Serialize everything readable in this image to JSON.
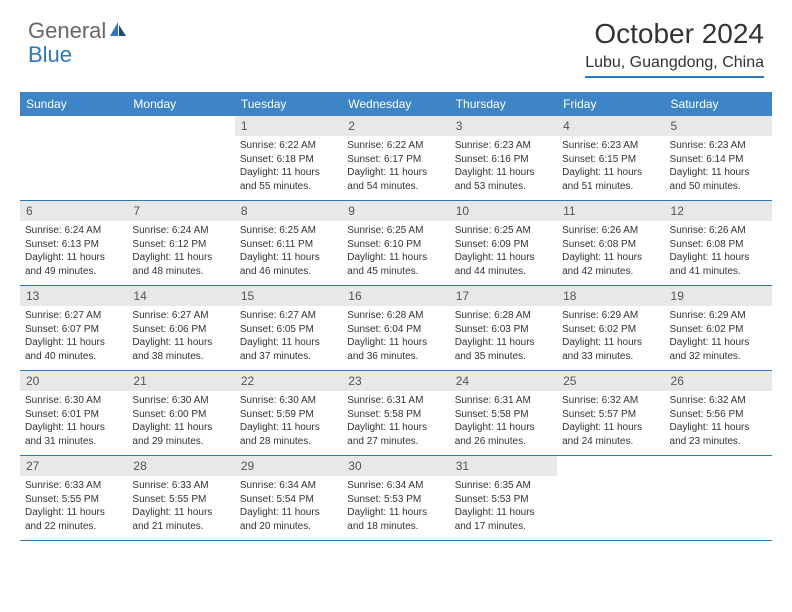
{
  "logo": {
    "text1": "General",
    "text2": "Blue"
  },
  "title": "October 2024",
  "location": "Lubu, Guangdong, China",
  "colors": {
    "header_bg": "#3d85c6",
    "border": "#2f76b8",
    "daynum_bg": "#e8e8e8",
    "text": "#333333"
  },
  "day_names": [
    "Sunday",
    "Monday",
    "Tuesday",
    "Wednesday",
    "Thursday",
    "Friday",
    "Saturday"
  ],
  "weeks": [
    [
      {
        "n": "",
        "lines": []
      },
      {
        "n": "",
        "lines": []
      },
      {
        "n": "1",
        "lines": [
          "Sunrise: 6:22 AM",
          "Sunset: 6:18 PM",
          "Daylight: 11 hours and 55 minutes."
        ]
      },
      {
        "n": "2",
        "lines": [
          "Sunrise: 6:22 AM",
          "Sunset: 6:17 PM",
          "Daylight: 11 hours and 54 minutes."
        ]
      },
      {
        "n": "3",
        "lines": [
          "Sunrise: 6:23 AM",
          "Sunset: 6:16 PM",
          "Daylight: 11 hours and 53 minutes."
        ]
      },
      {
        "n": "4",
        "lines": [
          "Sunrise: 6:23 AM",
          "Sunset: 6:15 PM",
          "Daylight: 11 hours and 51 minutes."
        ]
      },
      {
        "n": "5",
        "lines": [
          "Sunrise: 6:23 AM",
          "Sunset: 6:14 PM",
          "Daylight: 11 hours and 50 minutes."
        ]
      }
    ],
    [
      {
        "n": "6",
        "lines": [
          "Sunrise: 6:24 AM",
          "Sunset: 6:13 PM",
          "Daylight: 11 hours and 49 minutes."
        ]
      },
      {
        "n": "7",
        "lines": [
          "Sunrise: 6:24 AM",
          "Sunset: 6:12 PM",
          "Daylight: 11 hours and 48 minutes."
        ]
      },
      {
        "n": "8",
        "lines": [
          "Sunrise: 6:25 AM",
          "Sunset: 6:11 PM",
          "Daylight: 11 hours and 46 minutes."
        ]
      },
      {
        "n": "9",
        "lines": [
          "Sunrise: 6:25 AM",
          "Sunset: 6:10 PM",
          "Daylight: 11 hours and 45 minutes."
        ]
      },
      {
        "n": "10",
        "lines": [
          "Sunrise: 6:25 AM",
          "Sunset: 6:09 PM",
          "Daylight: 11 hours and 44 minutes."
        ]
      },
      {
        "n": "11",
        "lines": [
          "Sunrise: 6:26 AM",
          "Sunset: 6:08 PM",
          "Daylight: 11 hours and 42 minutes."
        ]
      },
      {
        "n": "12",
        "lines": [
          "Sunrise: 6:26 AM",
          "Sunset: 6:08 PM",
          "Daylight: 11 hours and 41 minutes."
        ]
      }
    ],
    [
      {
        "n": "13",
        "lines": [
          "Sunrise: 6:27 AM",
          "Sunset: 6:07 PM",
          "Daylight: 11 hours and 40 minutes."
        ]
      },
      {
        "n": "14",
        "lines": [
          "Sunrise: 6:27 AM",
          "Sunset: 6:06 PM",
          "Daylight: 11 hours and 38 minutes."
        ]
      },
      {
        "n": "15",
        "lines": [
          "Sunrise: 6:27 AM",
          "Sunset: 6:05 PM",
          "Daylight: 11 hours and 37 minutes."
        ]
      },
      {
        "n": "16",
        "lines": [
          "Sunrise: 6:28 AM",
          "Sunset: 6:04 PM",
          "Daylight: 11 hours and 36 minutes."
        ]
      },
      {
        "n": "17",
        "lines": [
          "Sunrise: 6:28 AM",
          "Sunset: 6:03 PM",
          "Daylight: 11 hours and 35 minutes."
        ]
      },
      {
        "n": "18",
        "lines": [
          "Sunrise: 6:29 AM",
          "Sunset: 6:02 PM",
          "Daylight: 11 hours and 33 minutes."
        ]
      },
      {
        "n": "19",
        "lines": [
          "Sunrise: 6:29 AM",
          "Sunset: 6:02 PM",
          "Daylight: 11 hours and 32 minutes."
        ]
      }
    ],
    [
      {
        "n": "20",
        "lines": [
          "Sunrise: 6:30 AM",
          "Sunset: 6:01 PM",
          "Daylight: 11 hours and 31 minutes."
        ]
      },
      {
        "n": "21",
        "lines": [
          "Sunrise: 6:30 AM",
          "Sunset: 6:00 PM",
          "Daylight: 11 hours and 29 minutes."
        ]
      },
      {
        "n": "22",
        "lines": [
          "Sunrise: 6:30 AM",
          "Sunset: 5:59 PM",
          "Daylight: 11 hours and 28 minutes."
        ]
      },
      {
        "n": "23",
        "lines": [
          "Sunrise: 6:31 AM",
          "Sunset: 5:58 PM",
          "Daylight: 11 hours and 27 minutes."
        ]
      },
      {
        "n": "24",
        "lines": [
          "Sunrise: 6:31 AM",
          "Sunset: 5:58 PM",
          "Daylight: 11 hours and 26 minutes."
        ]
      },
      {
        "n": "25",
        "lines": [
          "Sunrise: 6:32 AM",
          "Sunset: 5:57 PM",
          "Daylight: 11 hours and 24 minutes."
        ]
      },
      {
        "n": "26",
        "lines": [
          "Sunrise: 6:32 AM",
          "Sunset: 5:56 PM",
          "Daylight: 11 hours and 23 minutes."
        ]
      }
    ],
    [
      {
        "n": "27",
        "lines": [
          "Sunrise: 6:33 AM",
          "Sunset: 5:55 PM",
          "Daylight: 11 hours and 22 minutes."
        ]
      },
      {
        "n": "28",
        "lines": [
          "Sunrise: 6:33 AM",
          "Sunset: 5:55 PM",
          "Daylight: 11 hours and 21 minutes."
        ]
      },
      {
        "n": "29",
        "lines": [
          "Sunrise: 6:34 AM",
          "Sunset: 5:54 PM",
          "Daylight: 11 hours and 20 minutes."
        ]
      },
      {
        "n": "30",
        "lines": [
          "Sunrise: 6:34 AM",
          "Sunset: 5:53 PM",
          "Daylight: 11 hours and 18 minutes."
        ]
      },
      {
        "n": "31",
        "lines": [
          "Sunrise: 6:35 AM",
          "Sunset: 5:53 PM",
          "Daylight: 11 hours and 17 minutes."
        ]
      },
      {
        "n": "",
        "lines": []
      },
      {
        "n": "",
        "lines": []
      }
    ]
  ]
}
